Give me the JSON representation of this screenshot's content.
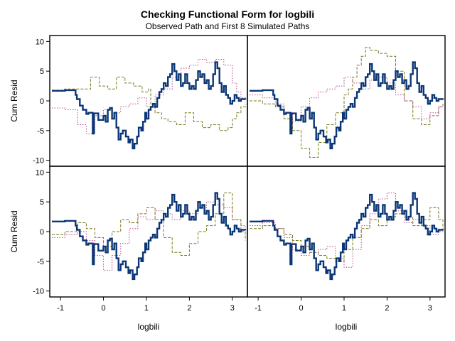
{
  "figure": {
    "title": "Checking Functional Form for logbili",
    "subtitle": "Observed Path and First 8 Simulated Paths",
    "xlabel": "logbili",
    "ylabel": "Cum Resid"
  },
  "colors": {
    "observed": "#0b3675",
    "sim_dash": "#7a7a1e",
    "sim_dot": "#b34a8c",
    "frame": "#000000",
    "background": "#ffffff"
  },
  "chart_data": {
    "type": "line",
    "layout": "2x2 panels",
    "xlim": [
      -1.25,
      3.35
    ],
    "ylim": [
      -11,
      11
    ],
    "xticks": [
      -1,
      0,
      1,
      2,
      3
    ],
    "yticks": [
      -10,
      -5,
      0,
      5,
      10
    ],
    "grid": false,
    "legend": "none",
    "observed": {
      "x": [
        -1.2,
        -0.9,
        -0.65,
        -0.62,
        -0.55,
        -0.48,
        -0.4,
        -0.35,
        -0.25,
        -0.22,
        -0.12,
        0.0,
        0.05,
        0.1,
        0.15,
        0.2,
        0.25,
        0.3,
        0.35,
        0.4,
        0.45,
        0.52,
        0.58,
        0.62,
        0.68,
        0.72,
        0.78,
        0.82,
        0.88,
        0.92,
        0.97,
        1.0,
        1.05,
        1.1,
        1.15,
        1.2,
        1.25,
        1.3,
        1.35,
        1.4,
        1.45,
        1.5,
        1.55,
        1.6,
        1.65,
        1.7,
        1.75,
        1.8,
        1.85,
        1.9,
        1.95,
        2.0,
        2.05,
        2.1,
        2.15,
        2.2,
        2.25,
        2.3,
        2.35,
        2.4,
        2.45,
        2.5,
        2.55,
        2.6,
        2.65,
        2.7,
        2.75,
        2.8,
        2.85,
        2.9,
        2.95,
        3.0,
        3.05,
        3.1,
        3.15,
        3.2,
        3.3
      ],
      "y": [
        1.7,
        1.8,
        1.0,
        0.3,
        -0.8,
        -1.5,
        -2.2,
        -2.0,
        -5.5,
        -2.1,
        -3.2,
        -2.5,
        -3.5,
        -1.5,
        -1.2,
        -3.0,
        -2.0,
        -4.5,
        -6.5,
        -5.5,
        -5.0,
        -6.0,
        -7.0,
        -6.5,
        -8.0,
        -7.2,
        -6.0,
        -4.5,
        -5.0,
        -3.5,
        -2.0,
        -3.0,
        -1.5,
        -1.0,
        -0.5,
        -1.0,
        0.5,
        1.5,
        2.0,
        3.0,
        2.5,
        4.0,
        4.5,
        6.2,
        5.0,
        3.5,
        4.5,
        2.5,
        3.0,
        4.5,
        3.0,
        2.0,
        2.5,
        2.0,
        3.5,
        5.0,
        4.0,
        4.5,
        3.0,
        3.5,
        2.0,
        2.5,
        4.5,
        6.5,
        5.5,
        3.0,
        1.5,
        2.5,
        1.0,
        0.5,
        -0.5,
        0.0,
        1.0,
        0.5,
        0.0,
        0.3,
        0.2
      ]
    },
    "panels": [
      {
        "simulated": [
          {
            "style": "dash",
            "x": [
              -1.2,
              -0.9,
              -0.6,
              -0.3,
              -0.1,
              0.1,
              0.3,
              0.5,
              0.7,
              0.9,
              1.05,
              1.1,
              1.2,
              1.35,
              1.5,
              1.7,
              1.9,
              2.1,
              2.3,
              2.5,
              2.7,
              2.9,
              3.0,
              3.1,
              3.2,
              3.3
            ],
            "y": [
              1.8,
              2.0,
              2.0,
              4.0,
              2.5,
              2.0,
              4.0,
              3.0,
              2.5,
              1.5,
              2.0,
              -1.0,
              -2.0,
              -3.0,
              -3.5,
              -4.0,
              -2.0,
              -3.5,
              -4.5,
              -4.0,
              -5.0,
              -4.5,
              -3.0,
              -2.0,
              -1.0,
              -0.5
            ]
          },
          {
            "style": "dot",
            "x": [
              -1.2,
              -0.9,
              -0.6,
              -0.4,
              -0.2,
              0.0,
              0.2,
              0.4,
              0.6,
              0.8,
              1.0,
              1.2,
              1.4,
              1.6,
              1.8,
              2.0,
              2.2,
              2.4,
              2.6,
              2.8,
              3.0,
              3.1,
              3.2,
              3.3
            ],
            "y": [
              -1.2,
              -1.5,
              -4.0,
              -5.5,
              -2.5,
              -1.5,
              -2.0,
              -1.0,
              -0.5,
              0.5,
              -1.0,
              1.0,
              2.0,
              4.0,
              5.5,
              6.0,
              7.0,
              6.5,
              7.0,
              6.0,
              3.0,
              1.5,
              0.5,
              0.3
            ]
          }
        ]
      },
      {
        "simulated": [
          {
            "style": "dash",
            "x": [
              -1.2,
              -0.9,
              -0.6,
              -0.4,
              -0.2,
              0.0,
              0.2,
              0.4,
              0.6,
              0.8,
              1.0,
              1.1,
              1.2,
              1.3,
              1.4,
              1.5,
              1.6,
              1.8,
              2.0,
              2.2,
              2.4,
              2.6,
              2.8,
              3.0,
              3.2,
              3.3
            ],
            "y": [
              0.0,
              -0.5,
              -1.0,
              -3.0,
              -5.0,
              -8.0,
              -9.5,
              -7.0,
              -4.0,
              -2.0,
              1.0,
              2.0,
              4.0,
              6.0,
              7.5,
              9.0,
              8.5,
              8.0,
              7.5,
              5.0,
              0.0,
              -3.0,
              -4.0,
              -2.5,
              -1.0,
              -0.5
            ]
          },
          {
            "style": "dot",
            "x": [
              -1.2,
              -0.9,
              -0.6,
              -0.4,
              -0.2,
              0.0,
              0.2,
              0.4,
              0.6,
              0.8,
              1.0,
              1.2,
              1.4,
              1.6,
              1.8,
              2.0,
              2.2,
              2.4,
              2.6,
              2.8,
              3.0,
              3.2,
              3.3
            ],
            "y": [
              1.0,
              0.5,
              -0.5,
              -2.0,
              -3.5,
              -1.0,
              0.5,
              1.5,
              2.0,
              2.5,
              4.0,
              3.0,
              2.0,
              3.5,
              4.0,
              3.0,
              1.0,
              0.0,
              -1.0,
              -3.0,
              -2.0,
              -1.0,
              -0.5
            ]
          }
        ]
      },
      {
        "simulated": [
          {
            "style": "dash",
            "x": [
              -1.2,
              -0.9,
              -0.6,
              -0.4,
              -0.2,
              0.0,
              0.2,
              0.4,
              0.6,
              0.8,
              1.0,
              1.2,
              1.4,
              1.6,
              1.8,
              2.0,
              2.2,
              2.4,
              2.6,
              2.8,
              3.0,
              3.2,
              3.3
            ],
            "y": [
              -0.5,
              0.0,
              1.5,
              0.5,
              -1.0,
              -2.5,
              0.0,
              2.0,
              1.5,
              3.0,
              4.0,
              2.0,
              -1.0,
              -3.5,
              -4.0,
              -2.0,
              0.0,
              1.0,
              3.0,
              6.5,
              2.0,
              0.0,
              -1.5
            ]
          },
          {
            "style": "dot",
            "x": [
              -1.2,
              -0.9,
              -0.6,
              -0.4,
              -0.2,
              0.0,
              0.2,
              0.4,
              0.6,
              0.8,
              1.0,
              1.2,
              1.4,
              1.6,
              1.8,
              2.0,
              2.2,
              2.4,
              2.6,
              2.8,
              3.0,
              3.2,
              3.3
            ],
            "y": [
              -1.0,
              -0.5,
              0.0,
              -1.5,
              -4.0,
              -6.5,
              -4.0,
              -2.0,
              0.5,
              2.5,
              2.0,
              3.5,
              3.0,
              2.0,
              3.5,
              3.0,
              4.0,
              5.0,
              4.5,
              4.0,
              2.0,
              1.0,
              -0.5
            ]
          }
        ]
      },
      {
        "simulated": [
          {
            "style": "dash",
            "x": [
              -1.2,
              -0.9,
              -0.6,
              -0.4,
              -0.2,
              0.0,
              0.2,
              0.4,
              0.6,
              0.8,
              1.0,
              1.2,
              1.4,
              1.6,
              1.8,
              2.0,
              2.2,
              2.4,
              2.6,
              2.8,
              3.0,
              3.2,
              3.3
            ],
            "y": [
              0.5,
              1.0,
              0.5,
              -0.5,
              -1.5,
              -2.5,
              -3.5,
              -4.0,
              -4.5,
              -5.0,
              -3.0,
              -1.0,
              0.5,
              2.0,
              1.0,
              2.5,
              3.0,
              2.5,
              1.0,
              2.0,
              4.0,
              2.0,
              0.5
            ]
          },
          {
            "style": "dot",
            "x": [
              -1.2,
              -0.9,
              -0.6,
              -0.4,
              -0.2,
              0.0,
              0.2,
              0.4,
              0.6,
              0.8,
              1.0,
              1.2,
              1.4,
              1.6,
              1.8,
              2.0,
              2.2,
              2.4,
              2.6,
              2.8,
              3.0,
              3.2,
              3.3
            ],
            "y": [
              1.0,
              1.5,
              0.5,
              -1.0,
              -3.0,
              -4.0,
              -3.5,
              -3.0,
              -2.5,
              -4.5,
              -6.0,
              -3.0,
              1.0,
              3.0,
              5.5,
              6.5,
              3.5,
              1.5,
              2.0,
              1.0,
              -0.5,
              0.0,
              0.3
            ]
          }
        ]
      }
    ]
  }
}
